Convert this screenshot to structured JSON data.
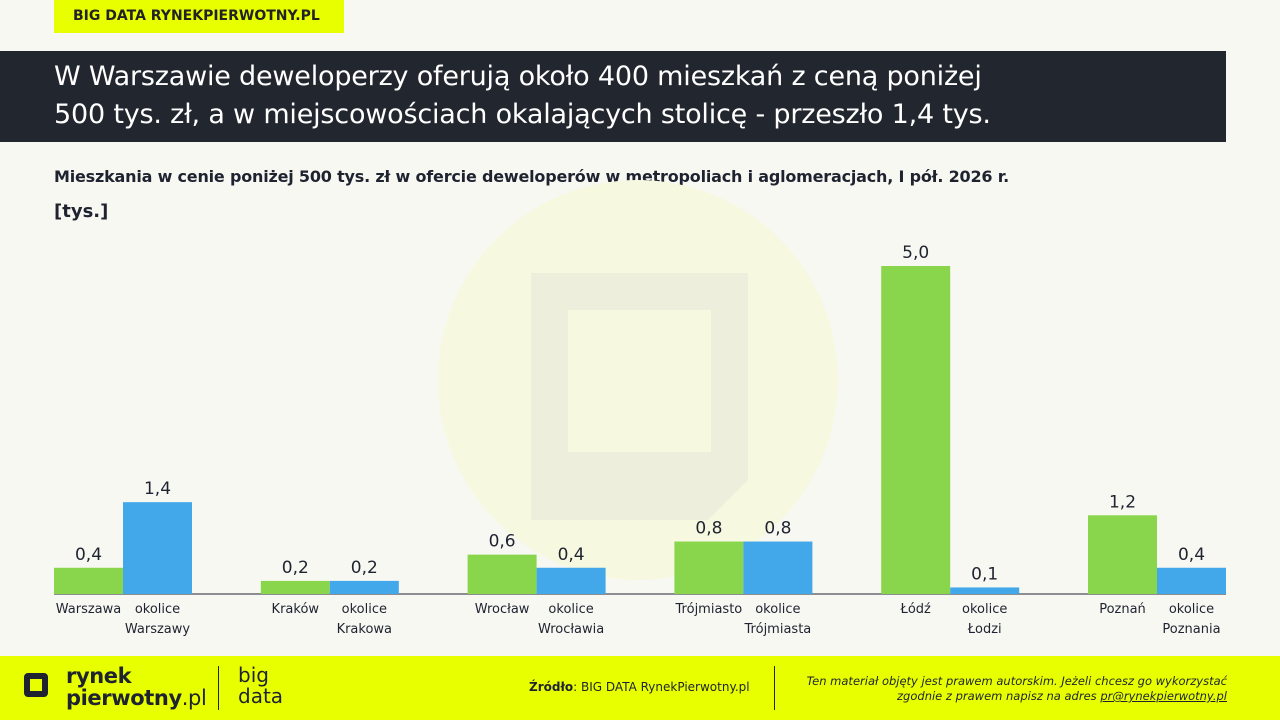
{
  "badge": "BIG DATA RYNEKPIERWOTNY.PL",
  "headline_line1": "W Warszawie deweloperzy oferują około 400 mieszkań z ceną poniżej",
  "headline_line2": "500 tys. zł, a w miejscowościach okalających stolicę - przeszło 1,4 tys.",
  "chart_data": {
    "type": "bar",
    "title": "Mieszkania w cenie poniżej 500 tys. zł w ofercie deweloperów w metropoliach i aglomeracjach, I pół. 2026 r.",
    "unit": "[tys.]",
    "ylim": [
      0,
      5
    ],
    "grid": false,
    "colors": {
      "city": "#89d64c",
      "surroundings": "#42a8ea"
    },
    "bars": [
      {
        "label": [
          "Warszawa"
        ],
        "value": 0.4,
        "value_label": "0,4",
        "kind": "city"
      },
      {
        "label": [
          "okolice",
          "Warszawy"
        ],
        "value": 1.4,
        "value_label": "1,4",
        "kind": "surroundings"
      },
      {
        "label": [
          "Kraków"
        ],
        "value": 0.2,
        "value_label": "0,2",
        "kind": "city"
      },
      {
        "label": [
          "okolice",
          "Krakowa"
        ],
        "value": 0.2,
        "value_label": "0,2",
        "kind": "surroundings"
      },
      {
        "label": [
          "Wrocław"
        ],
        "value": 0.6,
        "value_label": "0,6",
        "kind": "city"
      },
      {
        "label": [
          "okolice",
          "Wrocławia"
        ],
        "value": 0.4,
        "value_label": "0,4",
        "kind": "surroundings"
      },
      {
        "label": [
          "Trójmiasto"
        ],
        "value": 0.8,
        "value_label": "0,8",
        "kind": "city"
      },
      {
        "label": [
          "okolice",
          "Trójmiasta"
        ],
        "value": 0.8,
        "value_label": "0,8",
        "kind": "surroundings"
      },
      {
        "label": [
          "Łódź"
        ],
        "value": 5.0,
        "value_label": "5,0",
        "kind": "city"
      },
      {
        "label": [
          "okolice",
          "Łodzi"
        ],
        "value": 0.1,
        "value_label": "0,1",
        "kind": "surroundings"
      },
      {
        "label": [
          "Poznań"
        ],
        "value": 1.2,
        "value_label": "1,2",
        "kind": "city"
      },
      {
        "label": [
          "okolice",
          "Poznania"
        ],
        "value": 0.4,
        "value_label": "0,4",
        "kind": "surroundings"
      }
    ]
  },
  "footer": {
    "logo_line1": "rynek",
    "logo_line2_bold": "pierwotny",
    "logo_line2_thin": ".pl",
    "bigdata_line1": "big",
    "bigdata_line2": "data",
    "source_label": "Źródło",
    "source_text": ": BIG DATA RynekPierwotny.pl",
    "copyright_line1": "Ten materiał objęty jest prawem autorskim. Jeżeli chcesz go wykorzystać",
    "copyright_line2": "zgodnie z prawem napisz na adres ",
    "copyright_email": "pr@rynekpierwotny.pl"
  }
}
